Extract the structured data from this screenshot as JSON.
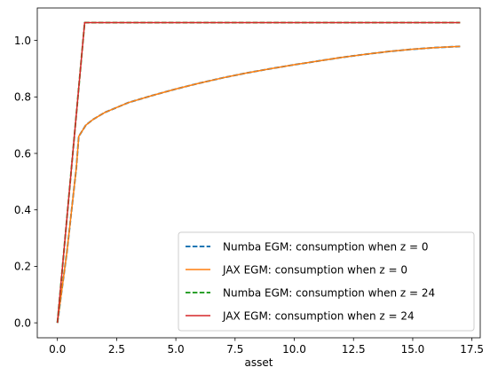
{
  "chart_data": {
    "type": "line",
    "xlabel": "asset",
    "ylabel": "",
    "xlim": [
      -0.85,
      17.85
    ],
    "ylim": [
      -0.053,
      1.115
    ],
    "xticks": [
      "0.0",
      "2.5",
      "5.0",
      "7.5",
      "10.0",
      "12.5",
      "15.0",
      "17.5"
    ],
    "yticks": [
      "0.0",
      "0.2",
      "0.4",
      "0.6",
      "0.8",
      "1.0"
    ],
    "grid": false,
    "legend_placement": "lower-right",
    "series": [
      {
        "name": "Numba EGM: consumption when $z = 0$",
        "name_display": "Numba EGM: consumption when z = 0",
        "color": "#1f77b4",
        "dash": "dashed",
        "points": [
          [
            0,
            0
          ],
          [
            0.4,
            0.25
          ],
          [
            0.8,
            0.55
          ],
          [
            0.9,
            0.66
          ],
          [
            1.2,
            0.7
          ],
          [
            1.5,
            0.72
          ],
          [
            2,
            0.745
          ],
          [
            3,
            0.78
          ],
          [
            4,
            0.805
          ],
          [
            5,
            0.828
          ],
          [
            6,
            0.849
          ],
          [
            7,
            0.868
          ],
          [
            8,
            0.885
          ],
          [
            9,
            0.9
          ],
          [
            10,
            0.914
          ],
          [
            11,
            0.927
          ],
          [
            12,
            0.94
          ],
          [
            13,
            0.951
          ],
          [
            14,
            0.961
          ],
          [
            15,
            0.969
          ],
          [
            16,
            0.975
          ],
          [
            17,
            0.979
          ]
        ]
      },
      {
        "name": "JAX EGM: consumption when $z = 0$",
        "name_display": "JAX EGM: consumption when z = 0",
        "color": "#ff7f0e",
        "dash": "solid",
        "points": [
          [
            0,
            0
          ],
          [
            0.4,
            0.25
          ],
          [
            0.8,
            0.55
          ],
          [
            0.9,
            0.66
          ],
          [
            1.2,
            0.7
          ],
          [
            1.5,
            0.72
          ],
          [
            2,
            0.745
          ],
          [
            3,
            0.78
          ],
          [
            4,
            0.805
          ],
          [
            5,
            0.828
          ],
          [
            6,
            0.849
          ],
          [
            7,
            0.868
          ],
          [
            8,
            0.885
          ],
          [
            9,
            0.9
          ],
          [
            10,
            0.914
          ],
          [
            11,
            0.927
          ],
          [
            12,
            0.94
          ],
          [
            13,
            0.951
          ],
          [
            14,
            0.961
          ],
          [
            15,
            0.969
          ],
          [
            16,
            0.975
          ],
          [
            17,
            0.979
          ]
        ]
      },
      {
        "name": "Numba EGM: consumption when $z = 24$",
        "name_display": "Numba EGM: consumption when z = 24",
        "color": "#2ca02c",
        "dash": "dashed",
        "points": [
          [
            0,
            0
          ],
          [
            1.15,
            1.063
          ],
          [
            17,
            1.063
          ]
        ]
      },
      {
        "name": "JAX EGM: consumption when $z = 24$",
        "name_display": "JAX EGM: consumption when z = 24",
        "color": "#d62728",
        "dash": "solid",
        "points": [
          [
            0,
            0
          ],
          [
            1.15,
            1.063
          ],
          [
            17,
            1.063
          ]
        ]
      }
    ]
  }
}
